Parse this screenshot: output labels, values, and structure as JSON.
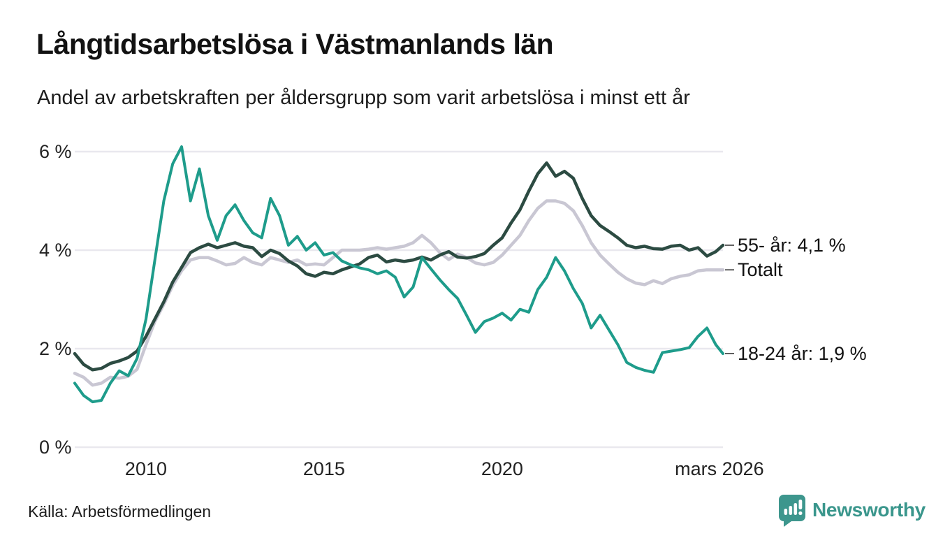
{
  "header": {
    "title": "Långtidsarbetslösa i Västmanlands län",
    "subtitle": "Andel av arbetskraften per åldersgrupp som varit arbetslösa i minst ett år"
  },
  "footer": {
    "source": "Källa: Arbetsförmedlingen",
    "brand": "Newsworthy"
  },
  "colors": {
    "background": "#ffffff",
    "grid": "#E9E8EE",
    "text": "#1d1d1d",
    "leader": "#333333",
    "series_18_24": "#1E9C8B",
    "series_55": "#2C4B42",
    "series_total": "#C9C7D3",
    "brand_teal": "#3D968D"
  },
  "chart_data": {
    "type": "line",
    "title": "Långtidsarbetslösa i Västmanlands län",
    "subtitle": "Andel av arbetskraften per åldersgrupp som varit arbetslösa i minst ett år",
    "ylabel": "",
    "xlabel": "",
    "grid": "horizontal",
    "legend_position": "right-end-labels",
    "x_range": [
      2008.0,
      2026.2
    ],
    "ylim": [
      0,
      6.4
    ],
    "y_axis": {
      "ticks": [
        {
          "label": "6 %",
          "value": 6
        },
        {
          "label": "4 %",
          "value": 4
        },
        {
          "label": "2 %",
          "value": 2
        },
        {
          "label": "0 %",
          "value": 0
        }
      ]
    },
    "x_axis": {
      "ticks": [
        {
          "label": "2010",
          "year": 2010
        },
        {
          "label": "2015",
          "year": 2015
        },
        {
          "label": "2020",
          "year": 2020
        },
        {
          "label": "mars 2026",
          "year": 2026.1
        }
      ]
    },
    "x": [
      2008.0,
      2008.25,
      2008.5,
      2008.75,
      2009.0,
      2009.25,
      2009.5,
      2009.75,
      2010.0,
      2010.25,
      2010.5,
      2010.75,
      2011.0,
      2011.25,
      2011.5,
      2011.75,
      2012.0,
      2012.25,
      2012.5,
      2012.75,
      2013.0,
      2013.25,
      2013.5,
      2013.75,
      2014.0,
      2014.25,
      2014.5,
      2014.75,
      2015.0,
      2015.25,
      2015.5,
      2015.75,
      2016.0,
      2016.25,
      2016.5,
      2016.75,
      2017.0,
      2017.25,
      2017.5,
      2017.75,
      2018.0,
      2018.25,
      2018.5,
      2018.75,
      2019.0,
      2019.25,
      2019.5,
      2019.75,
      2020.0,
      2020.25,
      2020.5,
      2020.75,
      2021.0,
      2021.25,
      2021.5,
      2021.75,
      2022.0,
      2022.25,
      2022.5,
      2022.75,
      2023.0,
      2023.25,
      2023.5,
      2023.75,
      2024.0,
      2024.25,
      2024.5,
      2024.75,
      2025.0,
      2025.25,
      2025.5,
      2025.75,
      2026.0,
      2026.2
    ],
    "series": [
      {
        "name": "55- år",
        "end_label": "55- år: 4,1 %",
        "end_value": "4,1 %",
        "color": "#2C4B42",
        "values": [
          1.9,
          1.68,
          1.57,
          1.6,
          1.7,
          1.75,
          1.82,
          1.95,
          2.25,
          2.6,
          2.95,
          3.35,
          3.65,
          3.95,
          4.05,
          4.12,
          4.05,
          4.1,
          4.15,
          4.08,
          4.05,
          3.87,
          4.0,
          3.93,
          3.78,
          3.68,
          3.52,
          3.47,
          3.55,
          3.52,
          3.6,
          3.66,
          3.72,
          3.85,
          3.9,
          3.76,
          3.8,
          3.77,
          3.8,
          3.86,
          3.8,
          3.9,
          3.97,
          3.86,
          3.84,
          3.87,
          3.93,
          4.1,
          4.25,
          4.55,
          4.82,
          5.2,
          5.55,
          5.77,
          5.5,
          5.6,
          5.46,
          5.05,
          4.7,
          4.5,
          4.38,
          4.25,
          4.1,
          4.05,
          4.08,
          4.03,
          4.02,
          4.08,
          4.1,
          4.0,
          4.05,
          3.88,
          3.97,
          4.1
        ]
      },
      {
        "name": "Totalt",
        "end_label": "Totalt",
        "end_value": "3,6 %",
        "color": "#C9C7D3",
        "values": [
          1.5,
          1.42,
          1.26,
          1.3,
          1.42,
          1.4,
          1.44,
          1.58,
          2.08,
          2.55,
          2.9,
          3.28,
          3.58,
          3.8,
          3.85,
          3.85,
          3.78,
          3.7,
          3.73,
          3.85,
          3.75,
          3.7,
          3.85,
          3.8,
          3.75,
          3.8,
          3.7,
          3.72,
          3.7,
          3.85,
          4.0,
          4.0,
          4.0,
          4.02,
          4.05,
          4.02,
          4.05,
          4.08,
          4.15,
          4.3,
          4.15,
          3.95,
          3.81,
          3.92,
          3.85,
          3.74,
          3.7,
          3.75,
          3.9,
          4.1,
          4.3,
          4.6,
          4.85,
          5.0,
          5.0,
          4.95,
          4.8,
          4.5,
          4.15,
          3.9,
          3.72,
          3.55,
          3.42,
          3.33,
          3.3,
          3.38,
          3.32,
          3.42,
          3.47,
          3.5,
          3.58,
          3.6,
          3.6,
          3.6
        ]
      },
      {
        "name": "18-24 år",
        "end_label": "18-24 år: 1,9 %",
        "end_value": "1,9 %",
        "color": "#1E9C8B",
        "values": [
          1.3,
          1.05,
          0.92,
          0.95,
          1.3,
          1.55,
          1.45,
          1.8,
          2.6,
          3.8,
          5.0,
          5.75,
          6.1,
          5.0,
          5.65,
          4.7,
          4.2,
          4.7,
          4.92,
          4.6,
          4.35,
          4.25,
          5.05,
          4.7,
          4.1,
          4.28,
          4.0,
          4.15,
          3.9,
          3.95,
          3.78,
          3.7,
          3.64,
          3.6,
          3.52,
          3.58,
          3.45,
          3.05,
          3.25,
          3.85,
          3.62,
          3.4,
          3.2,
          3.02,
          2.68,
          2.33,
          2.55,
          2.62,
          2.72,
          2.58,
          2.8,
          2.74,
          3.2,
          3.45,
          3.85,
          3.58,
          3.22,
          2.92,
          2.42,
          2.68,
          2.38,
          2.08,
          1.72,
          1.62,
          1.56,
          1.52,
          1.92,
          1.95,
          1.98,
          2.02,
          2.25,
          2.42,
          2.08,
          1.9
        ]
      }
    ]
  }
}
